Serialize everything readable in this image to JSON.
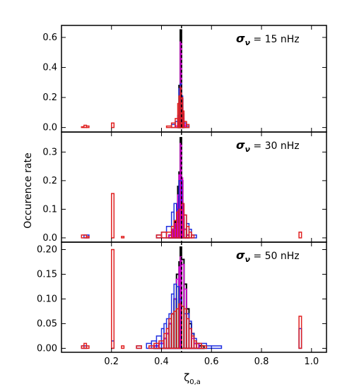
{
  "chart_data": [
    {
      "type": "histogram",
      "annotation": {
        "sigma": "σ",
        "sub": "ν",
        "rest": " = 15 nHz"
      },
      "ylim": [
        -0.03,
        0.68
      ],
      "yticks": [
        "0.0",
        "0.2",
        "0.4",
        "0.6"
      ],
      "ytick_values": [
        0.0,
        0.2,
        0.4,
        0.6
      ],
      "series": [
        {
          "color": "#000000",
          "bins": [
            [
              0.465,
              0.47,
              0.02
            ],
            [
              0.47,
              0.475,
              0.28
            ],
            [
              0.475,
              0.48,
              0.65
            ],
            [
              0.48,
              0.485,
              0.19
            ],
            [
              0.485,
              0.49,
              0.04
            ]
          ]
        },
        {
          "color": "#e000e0",
          "bins": [
            [
              0.455,
              0.465,
              0.01
            ],
            [
              0.465,
              0.47,
              0.06
            ],
            [
              0.47,
              0.475,
              0.24
            ],
            [
              0.475,
              0.48,
              0.57
            ],
            [
              0.48,
              0.485,
              0.19
            ],
            [
              0.485,
              0.49,
              0.06
            ],
            [
              0.49,
              0.495,
              0.02
            ]
          ]
        },
        {
          "color": "#2030e0",
          "bins": [
            [
              0.44,
              0.455,
              0.02
            ],
            [
              0.455,
              0.465,
              0.04
            ],
            [
              0.465,
              0.47,
              0.08
            ],
            [
              0.47,
              0.475,
              0.26
            ],
            [
              0.475,
              0.48,
              0.29
            ],
            [
              0.48,
              0.485,
              0.21
            ],
            [
              0.485,
              0.49,
              0.09
            ],
            [
              0.49,
              0.5,
              0.03
            ],
            [
              0.5,
              0.51,
              0.01
            ]
          ]
        },
        {
          "color": "#e02020",
          "bins": [
            [
              0.08,
              0.09,
              0.005
            ],
            [
              0.09,
              0.1,
              0.015
            ],
            [
              0.1,
              0.11,
              0.01
            ],
            [
              0.2,
              0.21,
              0.03
            ],
            [
              0.42,
              0.44,
              0.01
            ],
            [
              0.44,
              0.455,
              0.03
            ],
            [
              0.455,
              0.465,
              0.06
            ],
            [
              0.465,
              0.47,
              0.16
            ],
            [
              0.47,
              0.475,
              0.21
            ],
            [
              0.475,
              0.48,
              0.27
            ],
            [
              0.48,
              0.485,
              0.2
            ],
            [
              0.485,
              0.49,
              0.11
            ],
            [
              0.49,
              0.5,
              0.04
            ],
            [
              0.5,
              0.51,
              0.02
            ]
          ]
        }
      ]
    },
    {
      "type": "histogram",
      "annotation": {
        "sigma": "σ",
        "sub": "ν",
        "rest": " = 30 nHz"
      },
      "ylabel": "Occurence rate",
      "ylim": [
        -0.015,
        0.37
      ],
      "yticks": [
        "0.0",
        "0.1",
        "0.2",
        "0.3"
      ],
      "ytick_values": [
        0.0,
        0.1,
        0.2,
        0.3
      ],
      "series": [
        {
          "color": "#000000",
          "bins": [
            [
              0.43,
              0.445,
              0.01
            ],
            [
              0.445,
              0.455,
              0.03
            ],
            [
              0.455,
              0.465,
              0.06
            ],
            [
              0.465,
              0.47,
              0.18
            ],
            [
              0.47,
              0.475,
              0.23
            ],
            [
              0.475,
              0.48,
              0.35
            ],
            [
              0.48,
              0.485,
              0.2
            ],
            [
              0.485,
              0.49,
              0.07
            ],
            [
              0.49,
              0.5,
              0.03
            ],
            [
              0.5,
              0.51,
              0.01
            ]
          ]
        },
        {
          "color": "#e000e0",
          "bins": [
            [
              0.43,
              0.445,
              0.01
            ],
            [
              0.445,
              0.455,
              0.03
            ],
            [
              0.455,
              0.465,
              0.05
            ],
            [
              0.465,
              0.47,
              0.15
            ],
            [
              0.47,
              0.475,
              0.22
            ],
            [
              0.475,
              0.48,
              0.33
            ],
            [
              0.48,
              0.485,
              0.21
            ],
            [
              0.485,
              0.49,
              0.09
            ],
            [
              0.49,
              0.5,
              0.03
            ],
            [
              0.5,
              0.51,
              0.01
            ]
          ]
        },
        {
          "color": "#2030e0",
          "bins": [
            [
              0.09,
              0.11,
              0.01
            ],
            [
              0.38,
              0.4,
              0.01
            ],
            [
              0.4,
              0.42,
              0.02
            ],
            [
              0.42,
              0.44,
              0.04
            ],
            [
              0.44,
              0.45,
              0.09
            ],
            [
              0.45,
              0.46,
              0.12
            ],
            [
              0.46,
              0.47,
              0.1
            ],
            [
              0.47,
              0.48,
              0.2
            ],
            [
              0.48,
              0.49,
              0.12
            ],
            [
              0.49,
              0.5,
              0.08
            ],
            [
              0.5,
              0.51,
              0.05
            ],
            [
              0.51,
              0.52,
              0.03
            ],
            [
              0.52,
              0.54,
              0.01
            ]
          ]
        },
        {
          "color": "#e02020",
          "bins": [
            [
              0.08,
              0.1,
              0.01
            ],
            [
              0.1,
              0.11,
              0.005
            ],
            [
              0.2,
              0.21,
              0.155
            ],
            [
              0.24,
              0.25,
              0.005
            ],
            [
              0.38,
              0.4,
              0.01
            ],
            [
              0.4,
              0.42,
              0.02
            ],
            [
              0.42,
              0.44,
              0.02
            ],
            [
              0.44,
              0.45,
              0.04
            ],
            [
              0.45,
              0.46,
              0.06
            ],
            [
              0.46,
              0.47,
              0.09
            ],
            [
              0.47,
              0.48,
              0.1
            ],
            [
              0.48,
              0.49,
              0.12
            ],
            [
              0.49,
              0.5,
              0.08
            ],
            [
              0.5,
              0.51,
              0.04
            ],
            [
              0.51,
              0.52,
              0.02
            ],
            [
              0.52,
              0.53,
              0.01
            ],
            [
              0.95,
              0.96,
              0.02
            ]
          ]
        }
      ]
    },
    {
      "type": "histogram",
      "annotation": {
        "sigma": "σ",
        "sub": "ν",
        "rest": " = 50 nHz"
      },
      "xlabel": {
        "main": "ζ",
        "sub": "0,a"
      },
      "xlim": [
        0.0,
        1.06
      ],
      "xticks": [
        "0.2",
        "0.4",
        "0.6",
        "0.8",
        "1.0"
      ],
      "xtick_values": [
        0.2,
        0.4,
        0.6,
        0.8,
        1.0
      ],
      "ylim": [
        -0.008,
        0.215
      ],
      "yticks": [
        "0.00",
        "0.05",
        "0.10",
        "0.15",
        "0.20"
      ],
      "ytick_values": [
        0.0,
        0.05,
        0.1,
        0.15,
        0.2
      ],
      "series": [
        {
          "color": "#000000",
          "bins": [
            [
              0.37,
              0.39,
              0.005
            ],
            [
              0.39,
              0.41,
              0.01
            ],
            [
              0.41,
              0.42,
              0.02
            ],
            [
              0.42,
              0.43,
              0.03
            ],
            [
              0.43,
              0.44,
              0.05
            ],
            [
              0.44,
              0.45,
              0.07
            ],
            [
              0.45,
              0.46,
              0.1
            ],
            [
              0.46,
              0.47,
              0.15
            ],
            [
              0.47,
              0.475,
              0.175
            ],
            [
              0.475,
              0.48,
              0.205
            ],
            [
              0.48,
              0.49,
              0.18
            ],
            [
              0.49,
              0.5,
              0.13
            ],
            [
              0.5,
              0.51,
              0.08
            ],
            [
              0.51,
              0.52,
              0.05
            ],
            [
              0.52,
              0.53,
              0.03
            ],
            [
              0.53,
              0.55,
              0.01
            ],
            [
              0.55,
              0.57,
              0.005
            ]
          ]
        },
        {
          "color": "#e000e0",
          "bins": [
            [
              0.37,
              0.39,
              0.005
            ],
            [
              0.39,
              0.41,
              0.01
            ],
            [
              0.41,
              0.42,
              0.02
            ],
            [
              0.42,
              0.43,
              0.03
            ],
            [
              0.43,
              0.44,
              0.05
            ],
            [
              0.44,
              0.45,
              0.07
            ],
            [
              0.45,
              0.46,
              0.1
            ],
            [
              0.46,
              0.47,
              0.14
            ],
            [
              0.47,
              0.475,
              0.165
            ],
            [
              0.475,
              0.48,
              0.185
            ],
            [
              0.48,
              0.49,
              0.17
            ],
            [
              0.49,
              0.5,
              0.12
            ],
            [
              0.5,
              0.51,
              0.07
            ],
            [
              0.51,
              0.52,
              0.04
            ],
            [
              0.52,
              0.53,
              0.02
            ],
            [
              0.53,
              0.55,
              0.01
            ]
          ]
        },
        {
          "color": "#2030e0",
          "bins": [
            [
              0.08,
              0.1,
              0.005
            ],
            [
              0.2,
              0.21,
              0.015
            ],
            [
              0.3,
              0.32,
              0.005
            ],
            [
              0.34,
              0.36,
              0.01
            ],
            [
              0.36,
              0.38,
              0.015
            ],
            [
              0.38,
              0.4,
              0.025
            ],
            [
              0.4,
              0.41,
              0.04
            ],
            [
              0.41,
              0.42,
              0.05
            ],
            [
              0.42,
              0.43,
              0.06
            ],
            [
              0.43,
              0.44,
              0.07
            ],
            [
              0.44,
              0.45,
              0.11
            ],
            [
              0.45,
              0.46,
              0.13
            ],
            [
              0.46,
              0.47,
              0.125
            ],
            [
              0.47,
              0.48,
              0.1
            ],
            [
              0.48,
              0.49,
              0.085
            ],
            [
              0.49,
              0.5,
              0.07
            ],
            [
              0.5,
              0.51,
              0.07
            ],
            [
              0.51,
              0.52,
              0.055
            ],
            [
              0.52,
              0.53,
              0.03
            ],
            [
              0.53,
              0.54,
              0.02
            ],
            [
              0.54,
              0.56,
              0.01
            ],
            [
              0.56,
              0.58,
              0.01
            ],
            [
              0.58,
              0.6,
              0.005
            ],
            [
              0.6,
              0.64,
              0.005
            ],
            [
              0.95,
              0.96,
              0.04
            ]
          ]
        },
        {
          "color": "#e02020",
          "bins": [
            [
              0.08,
              0.09,
              0.005
            ],
            [
              0.09,
              0.1,
              0.01
            ],
            [
              0.1,
              0.11,
              0.005
            ],
            [
              0.2,
              0.21,
              0.2
            ],
            [
              0.24,
              0.25,
              0.005
            ],
            [
              0.3,
              0.32,
              0.005
            ],
            [
              0.35,
              0.37,
              0.005
            ],
            [
              0.37,
              0.39,
              0.01
            ],
            [
              0.39,
              0.41,
              0.015
            ],
            [
              0.41,
              0.42,
              0.03
            ],
            [
              0.42,
              0.43,
              0.04
            ],
            [
              0.43,
              0.44,
              0.06
            ],
            [
              0.44,
              0.45,
              0.07
            ],
            [
              0.45,
              0.46,
              0.075
            ],
            [
              0.46,
              0.47,
              0.08
            ],
            [
              0.47,
              0.48,
              0.09
            ],
            [
              0.48,
              0.49,
              0.085
            ],
            [
              0.49,
              0.5,
              0.08
            ],
            [
              0.5,
              0.51,
              0.06
            ],
            [
              0.51,
              0.52,
              0.04
            ],
            [
              0.52,
              0.53,
              0.025
            ],
            [
              0.53,
              0.54,
              0.015
            ],
            [
              0.54,
              0.56,
              0.01
            ],
            [
              0.56,
              0.58,
              0.005
            ],
            [
              0.95,
              0.96,
              0.065
            ]
          ]
        }
      ]
    }
  ],
  "reference_line": {
    "x": 0.48,
    "style": "dashed",
    "color": "#000000"
  }
}
